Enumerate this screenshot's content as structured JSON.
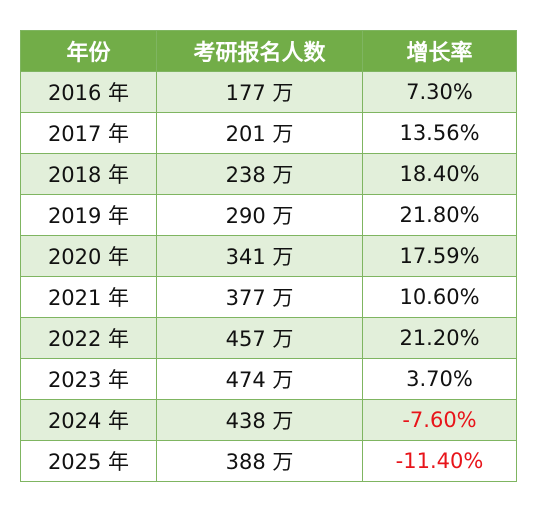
{
  "table": {
    "headers": [
      "年份",
      "考研报名人数",
      "增长率"
    ],
    "rows": [
      {
        "year": "2016 年",
        "count": "177 万",
        "growth": "7.30%"
      },
      {
        "year": "2017 年",
        "count": "201 万",
        "growth": "13.56%"
      },
      {
        "year": "2018 年",
        "count": "238 万",
        "growth": "18.40%"
      },
      {
        "year": "2019 年",
        "count": "290 万",
        "growth": "21.80%"
      },
      {
        "year": "2020 年",
        "count": "341 万",
        "growth": "17.59%"
      },
      {
        "year": "2021 年",
        "count": "377 万",
        "growth": "10.60%"
      },
      {
        "year": "2022 年",
        "count": "457 万",
        "growth": "21.20%"
      },
      {
        "year": "2023 年",
        "count": "474 万",
        "growth": "3.70%"
      },
      {
        "year": "2024 年",
        "count": "438 万",
        "growth": "-7.60%"
      },
      {
        "year": "2025 年",
        "count": "388 万",
        "growth": "-11.40%"
      }
    ]
  },
  "colors": {
    "header_bg": "#72ad48",
    "stripe_bg": "#e2efda",
    "border": "#7fb561",
    "negative_text": "#e8141a"
  }
}
